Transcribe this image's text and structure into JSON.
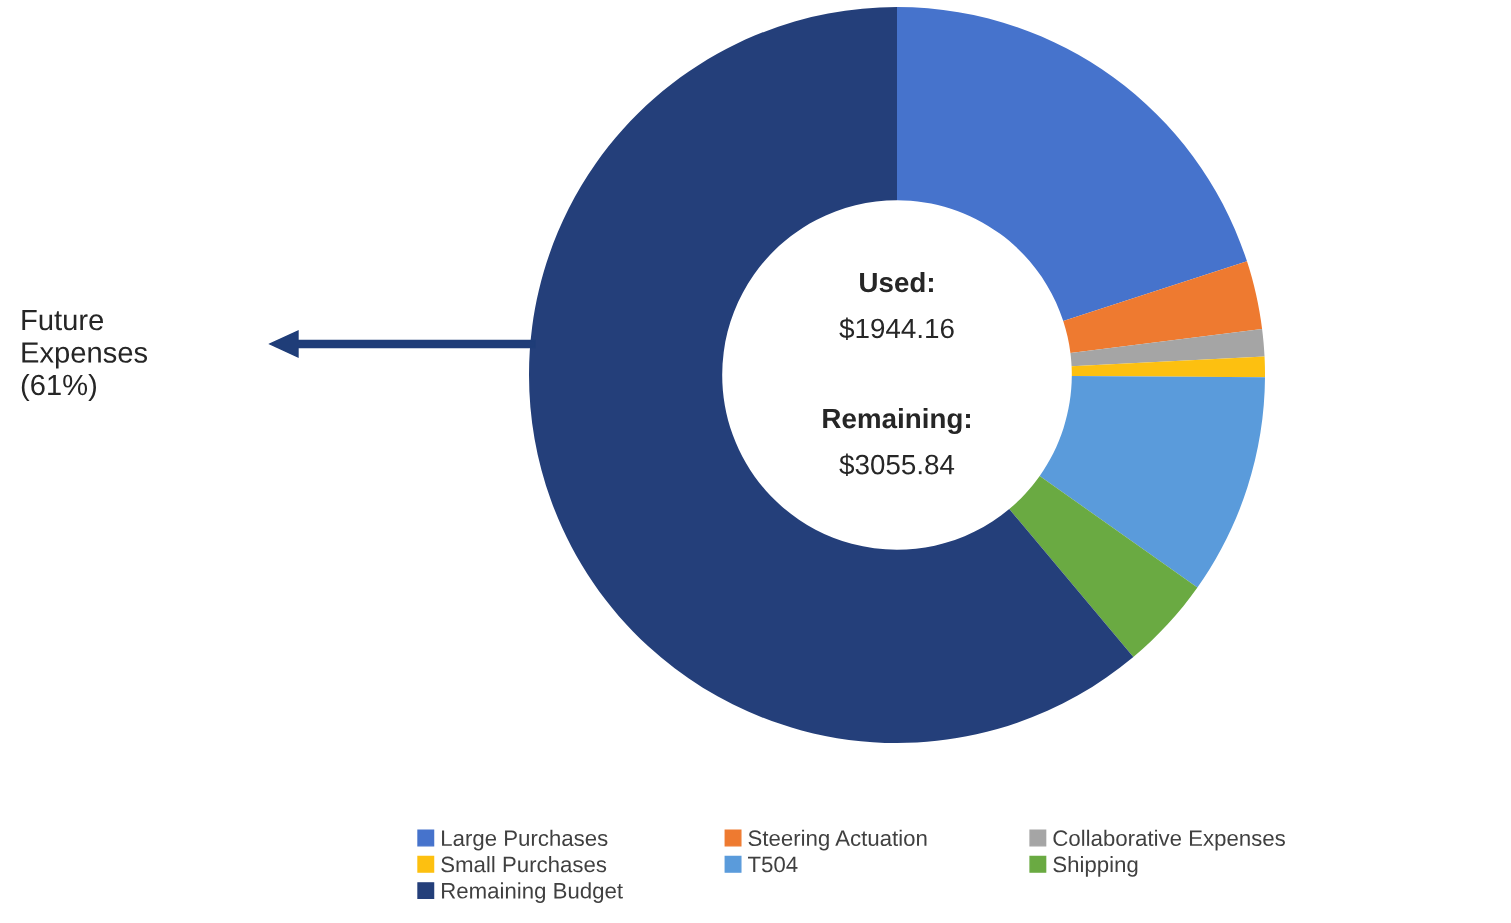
{
  "chart_data": {
    "type": "donut",
    "categories": [
      "Large Purchases",
      "Steering Actuation",
      "Collaborative Expenses",
      "Small Purchases",
      "T504",
      "Shipping",
      "Remaining Budget"
    ],
    "values": [
      20.0,
      3.0,
      1.2,
      0.9,
      9.7,
      4.1,
      61.1
    ],
    "colors": [
      "#4673cc",
      "#ee7a30",
      "#a5a5a5",
      "#fdc010",
      "#5a9bdb",
      "#6aaa42",
      "#243f7a"
    ],
    "annotations": [
      "Used:",
      "$1944.16",
      "Remaining:",
      "$3055.84",
      "Future\nExpenses\n(61%)"
    ],
    "legend": "bottom"
  }
}
